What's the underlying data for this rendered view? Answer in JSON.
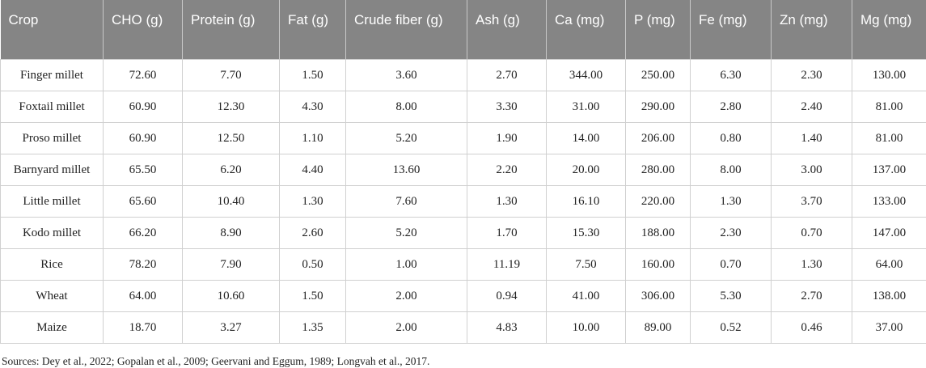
{
  "table": {
    "header": [
      "Crop",
      "CHO (g)",
      "Protein (g)",
      "Fat (g)",
      "Crude fiber (g)",
      "Ash (g)",
      "Ca (mg)",
      "P (mg)",
      "Fe (mg)",
      "Zn (mg)",
      "Mg (mg)"
    ],
    "rows": [
      [
        "Finger millet",
        "72.60",
        "7.70",
        "1.50",
        "3.60",
        "2.70",
        "344.00",
        "250.00",
        "6.30",
        "2.30",
        "130.00"
      ],
      [
        "Foxtail millet",
        "60.90",
        "12.30",
        "4.30",
        "8.00",
        "3.30",
        "31.00",
        "290.00",
        "2.80",
        "2.40",
        "81.00"
      ],
      [
        "Proso millet",
        "60.90",
        "12.50",
        "1.10",
        "5.20",
        "1.90",
        "14.00",
        "206.00",
        "0.80",
        "1.40",
        "81.00"
      ],
      [
        "Barnyard millet",
        "65.50",
        "6.20",
        "4.40",
        "13.60",
        "2.20",
        "20.00",
        "280.00",
        "8.00",
        "3.00",
        "137.00"
      ],
      [
        "Little millet",
        "65.60",
        "10.40",
        "1.30",
        "7.60",
        "1.30",
        "16.10",
        "220.00",
        "1.30",
        "3.70",
        "133.00"
      ],
      [
        "Kodo millet",
        "66.20",
        "8.90",
        "2.60",
        "5.20",
        "1.70",
        "15.30",
        "188.00",
        "2.30",
        "0.70",
        "147.00"
      ],
      [
        "Rice",
        "78.20",
        "7.90",
        "0.50",
        "1.00",
        "11.19",
        "7.50",
        "160.00",
        "0.70",
        "1.30",
        "64.00"
      ],
      [
        "Wheat",
        "64.00",
        "10.60",
        "1.50",
        "2.00",
        "0.94",
        "41.00",
        "306.00",
        "5.30",
        "2.70",
        "138.00"
      ],
      [
        "Maize",
        "18.70",
        "3.27",
        "1.35",
        "2.00",
        "4.83",
        "10.00",
        "89.00",
        "0.52",
        "0.46",
        "37.00"
      ]
    ]
  },
  "footer": "Sources: Dey et al., 2022; Gopalan et al., 2009; Geervani and Eggum, 1989; Longvah et al., 2017."
}
